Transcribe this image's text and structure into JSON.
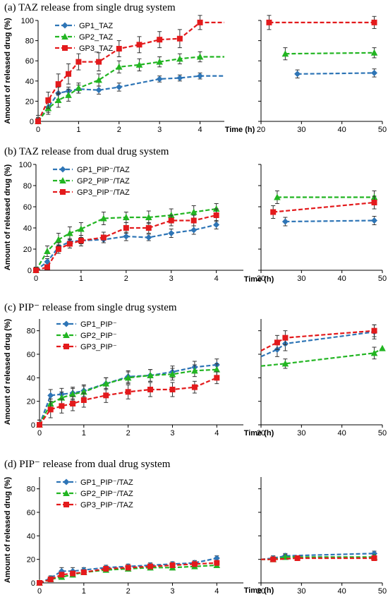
{
  "chart_data": [
    {
      "type": "line",
      "title": "(a) TAZ release from single drug system",
      "xlabel": "Time (h)",
      "ylabel": "Amount of released drug (%)",
      "ylim": [
        0,
        100
      ],
      "yticks": [
        0,
        20,
        40,
        60,
        80,
        100
      ],
      "x_left_ticks": [
        0,
        1,
        2,
        3,
        4
      ],
      "x_right_ticks": [
        20,
        30,
        40,
        50
      ],
      "legend": "top-left",
      "series": [
        {
          "name": "GP1_TAZ",
          "color": "#2e75b6",
          "marker": "diamond",
          "x": [
            0,
            0.25,
            0.5,
            0.75,
            1,
            1.5,
            2,
            3,
            3.5,
            4,
            4.6,
            29,
            48
          ],
          "y": [
            0,
            14,
            28,
            30,
            32,
            31,
            34,
            42,
            43,
            45,
            45,
            47,
            48
          ],
          "err": [
            4,
            5,
            6,
            4,
            4,
            4,
            4,
            3,
            3,
            3,
            0,
            4,
            4
          ]
        },
        {
          "name": "GP2_TAZ",
          "color": "#22b522",
          "marker": "triangle",
          "x": [
            0,
            0.25,
            0.5,
            0.75,
            1,
            1.5,
            2,
            2.5,
            3,
            3.5,
            4,
            4.6,
            26,
            48
          ],
          "y": [
            0,
            13,
            21,
            26,
            33,
            41,
            54,
            56,
            59,
            62,
            64,
            64,
            67,
            68
          ],
          "err": [
            3,
            6,
            7,
            6,
            5,
            6,
            6,
            6,
            5,
            5,
            5,
            0,
            6,
            5
          ]
        },
        {
          "name": "GP3_TAZ",
          "color": "#e31a1c",
          "marker": "square",
          "x": [
            0,
            0.25,
            0.5,
            0.75,
            1,
            1.5,
            2,
            2.5,
            3,
            3.5,
            4,
            4.6,
            22,
            48
          ],
          "y": [
            0,
            21,
            37,
            47,
            59,
            59,
            72,
            76,
            81,
            82,
            98,
            98,
            98,
            98
          ],
          "err": [
            6,
            8,
            10,
            10,
            8,
            9,
            8,
            8,
            8,
            9,
            7,
            0,
            7,
            6
          ]
        }
      ]
    },
    {
      "type": "line",
      "title": "(b) TAZ release from dual drug system",
      "xlabel": "Time (h)",
      "ylabel": "Amount of released drug (%)",
      "ylim": [
        0,
        100
      ],
      "yticks": [
        0,
        20,
        40,
        60,
        80,
        100
      ],
      "x_left_ticks": [
        0,
        1,
        2,
        3,
        4
      ],
      "x_right_ticks": [
        20,
        30,
        40,
        50
      ],
      "legend": "top-left",
      "series": [
        {
          "name": "GP1_PIP⁻/TAZ",
          "color": "#2e75b6",
          "marker": "diamond",
          "x": [
            0,
            0.25,
            0.5,
            0.75,
            1,
            1.5,
            2,
            2.5,
            3,
            3.5,
            4,
            26,
            48
          ],
          "y": [
            0,
            8,
            22,
            27,
            28,
            29,
            32,
            31,
            35,
            38,
            43,
            46,
            47
          ],
          "err": [
            2,
            3,
            4,
            3,
            3,
            3,
            4,
            3,
            4,
            4,
            4,
            4,
            4
          ]
        },
        {
          "name": "GP2_PIP⁻/TAZ",
          "color": "#22b522",
          "marker": "triangle",
          "x": [
            0,
            0.25,
            0.5,
            0.75,
            1,
            1.5,
            2,
            2.5,
            3,
            3.5,
            4,
            24,
            48
          ],
          "y": [
            0,
            18,
            29,
            35,
            39,
            49,
            50,
            50,
            52,
            55,
            58,
            69,
            69
          ],
          "err": [
            3,
            5,
            6,
            6,
            6,
            6,
            5,
            6,
            6,
            6,
            5,
            6,
            6
          ]
        },
        {
          "name": "GP3_PIP⁻/TAZ",
          "color": "#e31a1c",
          "marker": "square",
          "x": [
            0,
            0.25,
            0.5,
            0.75,
            1,
            1.5,
            2,
            2.5,
            3,
            3.5,
            4,
            23,
            48
          ],
          "y": [
            0,
            3,
            20,
            25,
            28,
            31,
            40,
            40,
            47,
            47,
            52,
            55,
            64
          ],
          "err": [
            2,
            2,
            4,
            4,
            5,
            5,
            5,
            5,
            5,
            5,
            6,
            6,
            6
          ]
        }
      ]
    },
    {
      "type": "line",
      "title": "(c) PIP⁻ release from single drug system",
      "xlabel": "Time (h)",
      "ylabel": "Amount of released drug (%)",
      "ylim": [
        0,
        90
      ],
      "yticks": [
        0,
        20,
        40,
        60,
        80
      ],
      "x_left_ticks": [
        0,
        1,
        2,
        3,
        4
      ],
      "x_right_ticks": [
        20,
        30,
        40,
        50
      ],
      "legend": "top-left",
      "series": [
        {
          "name": "GP1_PIP⁻",
          "color": "#2e75b6",
          "marker": "diamond",
          "x": [
            0,
            0.25,
            0.5,
            0.75,
            1,
            1.5,
            2,
            2.5,
            3,
            3.5,
            4,
            20,
            24,
            26,
            48
          ],
          "y": [
            0,
            25,
            26,
            27,
            29,
            35,
            41,
            42,
            45,
            49,
            51,
            58,
            64,
            69,
            79
          ],
          "err": [
            4,
            5,
            5,
            5,
            5,
            5,
            5,
            5,
            5,
            5,
            5,
            0,
            6,
            6,
            6
          ]
        },
        {
          "name": "GP2_PIP⁻",
          "color": "#22b522",
          "marker": "triangle",
          "x": [
            0,
            0.25,
            0.5,
            0.75,
            1,
            1.5,
            2,
            2.5,
            3,
            3.5,
            4,
            20,
            26,
            48,
            50
          ],
          "y": [
            0,
            18,
            23,
            26,
            28,
            35,
            40,
            42,
            43,
            46,
            47,
            50,
            52,
            61,
            65
          ],
          "err": [
            4,
            4,
            5,
            5,
            5,
            5,
            5,
            5,
            5,
            5,
            5,
            0,
            4,
            5,
            0
          ]
        },
        {
          "name": "GP3_PIP⁻",
          "color": "#e31a1c",
          "marker": "square",
          "x": [
            0,
            0.25,
            0.5,
            0.75,
            1,
            1.5,
            2,
            2.5,
            3,
            3.5,
            4,
            20,
            24,
            26,
            48
          ],
          "y": [
            0,
            13,
            16,
            18,
            21,
            25,
            28,
            30,
            30,
            32,
            40,
            63,
            70,
            74,
            80
          ],
          "err": [
            4,
            7,
            6,
            6,
            6,
            6,
            6,
            6,
            6,
            5,
            5,
            0,
            6,
            6,
            5
          ]
        }
      ]
    },
    {
      "type": "line",
      "title": "(d) PIP⁻ release from dual drug system",
      "xlabel": "Time (h)",
      "ylabel": "Amount of released drug (%)",
      "ylim": [
        0,
        90
      ],
      "yticks": [
        0,
        20,
        40,
        60,
        80
      ],
      "x_left_ticks": [
        0,
        1,
        2,
        3,
        4
      ],
      "x_right_ticks": [
        20,
        30,
        40,
        50
      ],
      "legend": "top-left",
      "series": [
        {
          "name": "GP1_PIP⁻/TAZ",
          "color": "#2e75b6",
          "marker": "diamond",
          "x": [
            0,
            0.25,
            0.5,
            0.75,
            1,
            1.5,
            2,
            2.5,
            3,
            3.5,
            4,
            20,
            23,
            26,
            48
          ],
          "y": [
            0,
            4,
            10,
            10,
            11,
            13,
            14,
            15,
            16,
            17,
            21,
            20,
            21,
            23,
            25
          ],
          "err": [
            2,
            2,
            3,
            3,
            2,
            2,
            2,
            2,
            2,
            2,
            2,
            0,
            2,
            2,
            2
          ]
        },
        {
          "name": "GP2_PIP⁻/TAZ",
          "color": "#22b522",
          "marker": "triangle",
          "x": [
            0,
            0.25,
            0.5,
            0.75,
            1,
            1.5,
            2,
            2.5,
            3,
            3.5,
            4,
            20,
            23,
            26,
            48
          ],
          "y": [
            0,
            3,
            5,
            7,
            9,
            11,
            12,
            13,
            13,
            14,
            15,
            20,
            20,
            22,
            22
          ],
          "err": [
            1,
            2,
            2,
            2,
            2,
            2,
            2,
            2,
            2,
            2,
            2,
            0,
            2,
            2,
            2
          ]
        },
        {
          "name": "GP3_PIP⁻/TAZ",
          "color": "#e31a1c",
          "marker": "square",
          "x": [
            0,
            0.25,
            0.5,
            0.75,
            1,
            1.5,
            2,
            2.5,
            3,
            3.5,
            4,
            20,
            23,
            29,
            48
          ],
          "y": [
            0,
            3,
            7,
            8,
            9,
            12,
            13,
            14,
            15,
            16,
            17,
            20,
            20,
            21,
            21
          ],
          "err": [
            1,
            2,
            2,
            2,
            2,
            2,
            2,
            2,
            2,
            2,
            2,
            0,
            2,
            2,
            2
          ]
        }
      ]
    }
  ]
}
